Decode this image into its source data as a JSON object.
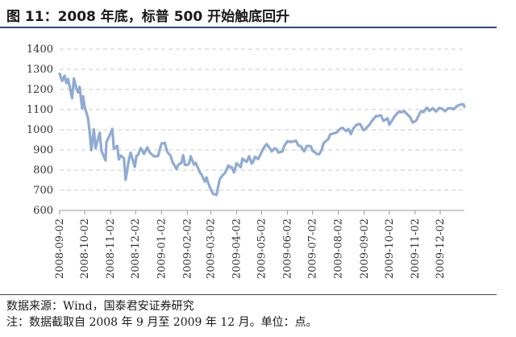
{
  "figure": {
    "title": "图 11：2008 年底，标普 500 开始触底回升",
    "source": "数据来源：Wind，国泰君安证券研究",
    "note": "注：数据截取自 2008 年 9 月至 2009 年 12 月。单位：点。"
  },
  "chart_data": {
    "type": "line",
    "title": "",
    "xlabel": "",
    "ylabel": "",
    "ylim": [
      600,
      1400
    ],
    "yticks": [
      600,
      700,
      800,
      900,
      1000,
      1100,
      1200,
      1300,
      1400
    ],
    "xticks": [
      "2008-09-02",
      "2008-10-02",
      "2008-11-02",
      "2008-12-02",
      "2009-01-02",
      "2009-02-02",
      "2009-03-02",
      "2009-04-02",
      "2009-05-02",
      "2009-06-02",
      "2009-07-02",
      "2009-08-02",
      "2009-09-02",
      "2009-10-02",
      "2009-11-02",
      "2009-12-02"
    ],
    "xrange": [
      "2008-09-02",
      "2009-12-31"
    ],
    "grid": true,
    "line_color": "#8fabd4",
    "series": [
      {
        "name": "",
        "points": [
          [
            "2008-09-02",
            1278
          ],
          [
            "2008-09-05",
            1242
          ],
          [
            "2008-09-08",
            1268
          ],
          [
            "2008-09-10",
            1232
          ],
          [
            "2008-09-12",
            1252
          ],
          [
            "2008-09-15",
            1193
          ],
          [
            "2008-09-17",
            1157
          ],
          [
            "2008-09-19",
            1255
          ],
          [
            "2008-09-22",
            1207
          ],
          [
            "2008-09-24",
            1185
          ],
          [
            "2008-09-26",
            1213
          ],
          [
            "2008-09-29",
            1106
          ],
          [
            "2008-09-30",
            1166
          ],
          [
            "2008-10-02",
            1114
          ],
          [
            "2008-10-06",
            1056
          ],
          [
            "2008-10-08",
            985
          ],
          [
            "2008-10-10",
            899
          ],
          [
            "2008-10-13",
            1003
          ],
          [
            "2008-10-15",
            908
          ],
          [
            "2008-10-17",
            941
          ],
          [
            "2008-10-20",
            986
          ],
          [
            "2008-10-22",
            896
          ],
          [
            "2008-10-24",
            877
          ],
          [
            "2008-10-27",
            848
          ],
          [
            "2008-10-28",
            941
          ],
          [
            "2008-10-30",
            954
          ],
          [
            "2008-11-04",
            1005
          ],
          [
            "2008-11-06",
            905
          ],
          [
            "2008-11-10",
            920
          ],
          [
            "2008-11-12",
            853
          ],
          [
            "2008-11-14",
            873
          ],
          [
            "2008-11-18",
            859
          ],
          [
            "2008-11-20",
            752
          ],
          [
            "2008-11-24",
            852
          ],
          [
            "2008-11-26",
            887
          ],
          [
            "2008-12-01",
            816
          ],
          [
            "2008-12-03",
            870
          ],
          [
            "2008-12-05",
            876
          ],
          [
            "2008-12-08",
            909
          ],
          [
            "2008-12-10",
            899
          ],
          [
            "2008-12-12",
            880
          ],
          [
            "2008-12-16",
            913
          ],
          [
            "2008-12-19",
            887
          ],
          [
            "2008-12-24",
            868
          ],
          [
            "2008-12-29",
            870
          ],
          [
            "2008-12-31",
            903
          ],
          [
            "2009-01-02",
            932
          ],
          [
            "2009-01-06",
            935
          ],
          [
            "2009-01-09",
            890
          ],
          [
            "2009-01-13",
            871
          ],
          [
            "2009-01-15",
            843
          ],
          [
            "2009-01-20",
            805
          ],
          [
            "2009-01-22",
            827
          ],
          [
            "2009-01-26",
            836
          ],
          [
            "2009-01-28",
            874
          ],
          [
            "2009-01-30",
            826
          ],
          [
            "2009-02-02",
            826
          ],
          [
            "2009-02-04",
            832
          ],
          [
            "2009-02-06",
            869
          ],
          [
            "2009-02-10",
            827
          ],
          [
            "2009-02-12",
            836
          ],
          [
            "2009-02-17",
            789
          ],
          [
            "2009-02-19",
            778
          ],
          [
            "2009-02-23",
            743
          ],
          [
            "2009-02-25",
            764
          ],
          [
            "2009-02-27",
            735
          ],
          [
            "2009-03-03",
            696
          ],
          [
            "2009-03-05",
            682
          ],
          [
            "2009-03-09",
            677
          ],
          [
            "2009-03-11",
            721
          ],
          [
            "2009-03-13",
            757
          ],
          [
            "2009-03-17",
            778
          ],
          [
            "2009-03-19",
            784
          ],
          [
            "2009-03-23",
            823
          ],
          [
            "2009-03-25",
            813
          ],
          [
            "2009-03-27",
            816
          ],
          [
            "2009-03-30",
            788
          ],
          [
            "2009-04-02",
            834
          ],
          [
            "2009-04-07",
            815
          ],
          [
            "2009-04-09",
            857
          ],
          [
            "2009-04-14",
            841
          ],
          [
            "2009-04-17",
            869
          ],
          [
            "2009-04-20",
            833
          ],
          [
            "2009-04-22",
            843
          ],
          [
            "2009-04-24",
            866
          ],
          [
            "2009-04-28",
            855
          ],
          [
            "2009-04-30",
            873
          ],
          [
            "2009-05-04",
            907
          ],
          [
            "2009-05-06",
            919
          ],
          [
            "2009-05-08",
            929
          ],
          [
            "2009-05-12",
            908
          ],
          [
            "2009-05-14",
            893
          ],
          [
            "2009-05-18",
            909
          ],
          [
            "2009-05-20",
            903
          ],
          [
            "2009-05-22",
            887
          ],
          [
            "2009-05-27",
            893
          ],
          [
            "2009-05-29",
            919
          ],
          [
            "2009-06-02",
            944
          ],
          [
            "2009-06-05",
            940
          ],
          [
            "2009-06-09",
            942
          ],
          [
            "2009-06-12",
            946
          ],
          [
            "2009-06-15",
            923
          ],
          [
            "2009-06-18",
            918
          ],
          [
            "2009-06-22",
            893
          ],
          [
            "2009-06-25",
            920
          ],
          [
            "2009-06-30",
            919
          ],
          [
            "2009-07-02",
            896
          ],
          [
            "2009-07-08",
            879
          ],
          [
            "2009-07-10",
            879
          ],
          [
            "2009-07-13",
            901
          ],
          [
            "2009-07-15",
            932
          ],
          [
            "2009-07-17",
            941
          ],
          [
            "2009-07-21",
            954
          ],
          [
            "2009-07-23",
            977
          ],
          [
            "2009-07-27",
            982
          ],
          [
            "2009-07-31",
            987
          ],
          [
            "2009-08-04",
            1005
          ],
          [
            "2009-08-07",
            1010
          ],
          [
            "2009-08-11",
            994
          ],
          [
            "2009-08-14",
            1004
          ],
          [
            "2009-08-17",
            979
          ],
          [
            "2009-08-20",
            1007
          ],
          [
            "2009-08-24",
            1026
          ],
          [
            "2009-08-28",
            1029
          ],
          [
            "2009-09-01",
            998
          ],
          [
            "2009-09-03",
            1003
          ],
          [
            "2009-09-08",
            1025
          ],
          [
            "2009-09-11",
            1043
          ],
          [
            "2009-09-16",
            1068
          ],
          [
            "2009-09-18",
            1068
          ],
          [
            "2009-09-22",
            1072
          ],
          [
            "2009-09-25",
            1044
          ],
          [
            "2009-09-30",
            1057
          ],
          [
            "2009-10-02",
            1025
          ],
          [
            "2009-10-07",
            1057
          ],
          [
            "2009-10-09",
            1071
          ],
          [
            "2009-10-14",
            1092
          ],
          [
            "2009-10-16",
            1087
          ],
          [
            "2009-10-20",
            1092
          ],
          [
            "2009-10-23",
            1079
          ],
          [
            "2009-10-27",
            1063
          ],
          [
            "2009-10-30",
            1036
          ],
          [
            "2009-11-03",
            1045
          ],
          [
            "2009-11-06",
            1069
          ],
          [
            "2009-11-09",
            1093
          ],
          [
            "2009-11-12",
            1088
          ],
          [
            "2009-11-16",
            1110
          ],
          [
            "2009-11-19",
            1094
          ],
          [
            "2009-11-23",
            1107
          ],
          [
            "2009-11-27",
            1091
          ],
          [
            "2009-12-01",
            1109
          ],
          [
            "2009-12-04",
            1105
          ],
          [
            "2009-12-08",
            1092
          ],
          [
            "2009-12-11",
            1106
          ],
          [
            "2009-12-15",
            1107
          ],
          [
            "2009-12-18",
            1102
          ],
          [
            "2009-12-23",
            1120
          ],
          [
            "2009-12-28",
            1127
          ],
          [
            "2009-12-30",
            1126
          ],
          [
            "2009-12-31",
            1115
          ]
        ]
      }
    ]
  }
}
